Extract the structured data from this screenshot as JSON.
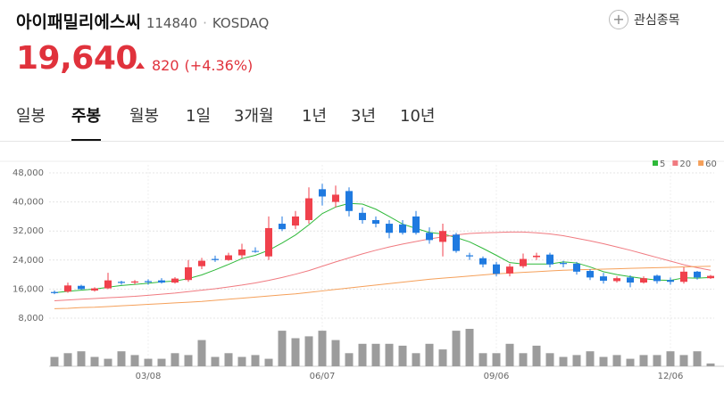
{
  "header": {
    "title": "아이패밀리에스씨",
    "code": "114840",
    "separator": "·",
    "market": "KOSDAQ",
    "favorite": "관심종목",
    "price": "19,640",
    "change": "820",
    "change_pct": "(+4.36%)"
  },
  "tabs": {
    "items": [
      "일봉",
      "주봉",
      "월봉",
      "1일",
      "3개월",
      "1년",
      "3년",
      "10년"
    ],
    "active": 1
  },
  "chart_data": {
    "type": "candlestick",
    "categories": [
      null,
      null,
      null,
      null,
      null,
      null,
      null,
      "03/08",
      null,
      null,
      null,
      null,
      null,
      null,
      null,
      null,
      null,
      null,
      null,
      null,
      "06/07",
      null,
      null,
      null,
      null,
      null,
      null,
      null,
      null,
      null,
      null,
      null,
      null,
      "09/06",
      null,
      null,
      null,
      null,
      null,
      null,
      null,
      null,
      null,
      null,
      null,
      null,
      "12/06",
      null,
      null,
      null
    ],
    "open": [
      15200,
      15300,
      16900,
      15600,
      16200,
      18000,
      17800,
      18200,
      18400,
      17800,
      18500,
      22300,
      24300,
      24000,
      25300,
      26500,
      25000,
      34000,
      33500,
      35000,
      43500,
      40000,
      43000,
      37000,
      35000,
      34000,
      33800,
      36000,
      31500,
      29000,
      31000,
      25300,
      24500,
      22800,
      20300,
      22300,
      24800,
      25500,
      23200,
      23000,
      21000,
      19500,
      18200,
      19200,
      17800,
      19700,
      18500,
      18000,
      20800,
      19000
    ],
    "high": [
      15600,
      17800,
      17200,
      16500,
      20500,
      18300,
      18500,
      18700,
      19000,
      19300,
      24000,
      24600,
      25200,
      26000,
      28500,
      27500,
      36000,
      36000,
      37500,
      44000,
      45000,
      44500,
      44000,
      38500,
      36000,
      35000,
      35000,
      37500,
      33000,
      34000,
      31500,
      26000,
      25000,
      23500,
      23000,
      25800,
      26000,
      26000,
      23800,
      23500,
      21500,
      20500,
      19500,
      19800,
      19500,
      20000,
      19200,
      22000,
      21000,
      19900
    ],
    "low": [
      14600,
      15000,
      15800,
      15300,
      16000,
      17200,
      17300,
      17200,
      17500,
      17500,
      18000,
      21500,
      23500,
      23800,
      24500,
      26000,
      24000,
      32000,
      32500,
      34000,
      39000,
      38500,
      36000,
      34000,
      33000,
      30000,
      31000,
      31000,
      28500,
      25000,
      26000,
      24000,
      22000,
      19500,
      19500,
      21800,
      24000,
      22000,
      22000,
      20000,
      18500,
      17500,
      17800,
      16500,
      17500,
      17500,
      17200,
      17500,
      18600,
      18800
    ],
    "close": [
      14900,
      17000,
      16000,
      16200,
      18400,
      17700,
      18100,
      17900,
      17800,
      18900,
      22000,
      23800,
      24000,
      25300,
      26900,
      26300,
      32800,
      32500,
      36000,
      41000,
      41500,
      42000,
      37500,
      35000,
      34000,
      31500,
      31500,
      31500,
      29500,
      32000,
      26500,
      25000,
      22800,
      20200,
      22200,
      24300,
      25200,
      22800,
      22900,
      20800,
      19200,
      18300,
      19000,
      17800,
      19000,
      18200,
      18000,
      20800,
      19200,
      19640
    ],
    "up_color": "#f0414c",
    "down_color": "#1f7ae0",
    "series": [
      {
        "name": "5",
        "color": "#2fb93a",
        "values": [
          15000,
          15400,
          15700,
          16000,
          16500,
          17000,
          17300,
          17600,
          18000,
          18200,
          18900,
          19900,
          21300,
          22800,
          24400,
          25300,
          26700,
          28700,
          30900,
          33700,
          36800,
          38600,
          39600,
          39400,
          38000,
          36000,
          33900,
          32700,
          31600,
          31200,
          30200,
          29000,
          27200,
          25300,
          23300,
          22900,
          22900,
          22900,
          23500,
          23200,
          22100,
          20800,
          20000,
          19400,
          18900,
          18500,
          18400,
          19100,
          19000,
          19200
        ]
      },
      {
        "name": "20",
        "color": "#f07a80",
        "values": [
          12800,
          13000,
          13200,
          13400,
          13600,
          13800,
          14000,
          14300,
          14600,
          14900,
          15300,
          15700,
          16100,
          16600,
          17100,
          17700,
          18400,
          19200,
          20100,
          21100,
          22300,
          23500,
          24600,
          25700,
          26700,
          27600,
          28400,
          29100,
          29800,
          30400,
          30900,
          31300,
          31500,
          31600,
          31700,
          31700,
          31500,
          31200,
          30700,
          30000,
          29300,
          28500,
          27600,
          26700,
          25700,
          24700,
          23700,
          22700,
          21900,
          21200
        ]
      },
      {
        "name": "60",
        "color": "#f5a05a",
        "values": [
          10600,
          10700,
          10900,
          11000,
          11200,
          11400,
          11600,
          11800,
          12000,
          12200,
          12400,
          12600,
          12900,
          13200,
          13500,
          13800,
          14100,
          14400,
          14700,
          15100,
          15500,
          15900,
          16300,
          16700,
          17100,
          17500,
          17900,
          18300,
          18700,
          19000,
          19300,
          19600,
          19900,
          20200,
          20400,
          20600,
          20800,
          21000,
          21200,
          21300,
          21400,
          21500,
          21600,
          21700,
          21800,
          21900,
          22000,
          22100,
          22200,
          22300
        ]
      }
    ],
    "volume": [
      10,
      14,
      16,
      10,
      8,
      16,
      12,
      8,
      8,
      14,
      12,
      28,
      10,
      14,
      10,
      12,
      8,
      38,
      30,
      32,
      38,
      28,
      14,
      24,
      24,
      24,
      22,
      14,
      24,
      18,
      38,
      40,
      14,
      14,
      24,
      14,
      22,
      14,
      10,
      12,
      16,
      10,
      12,
      8,
      12,
      12,
      16,
      12,
      16,
      3
    ],
    "volume_color": "#9c9c9c",
    "ylim": [
      8000,
      48000
    ],
    "yticks": [
      {
        "value": 8000,
        "label": "8,000"
      },
      {
        "value": 16000,
        "label": "16,000"
      },
      {
        "value": 24000,
        "label": "24,000"
      },
      {
        "value": 32000,
        "label": "32,000"
      },
      {
        "value": 40000,
        "label": "40,000"
      },
      {
        "value": 48000,
        "label": "48,000"
      }
    ],
    "grid": true
  }
}
